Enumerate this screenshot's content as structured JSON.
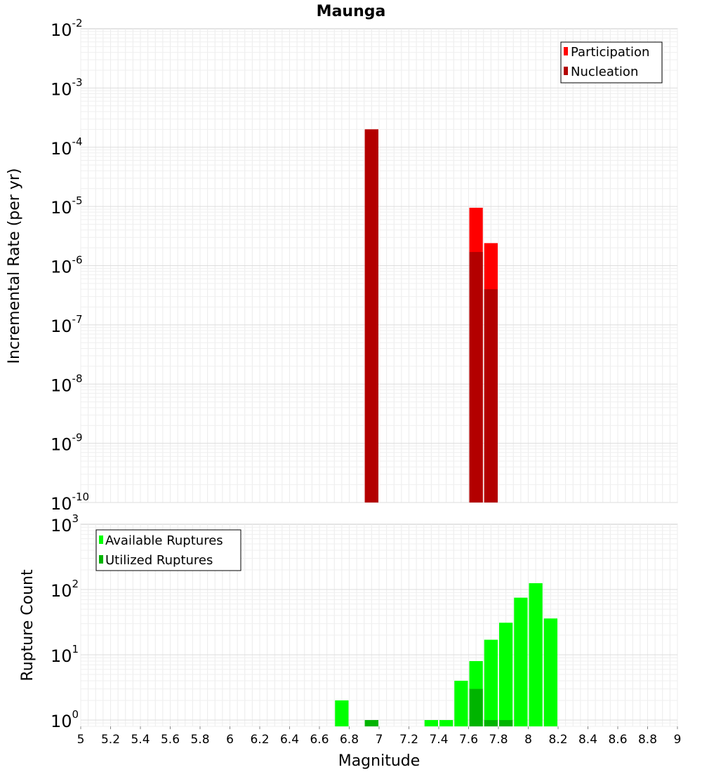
{
  "chart_data": [
    {
      "type": "bar",
      "title": "Maunga",
      "ylabel": "Incremental Rate (per yr)",
      "xlabel": "",
      "yscale": "log",
      "ylim": [
        1e-10,
        0.01
      ],
      "xlim": [
        5,
        9
      ],
      "y_ticks": [
        {
          "base": "10",
          "exp": "-10",
          "value": 1e-10
        },
        {
          "base": "10",
          "exp": "-9",
          "value": 1e-09
        },
        {
          "base": "10",
          "exp": "-8",
          "value": 1e-08
        },
        {
          "base": "10",
          "exp": "-7",
          "value": 1e-07
        },
        {
          "base": "10",
          "exp": "-6",
          "value": 1e-06
        },
        {
          "base": "10",
          "exp": "-5",
          "value": 1e-05
        },
        {
          "base": "10",
          "exp": "-4",
          "value": 0.0001
        },
        {
          "base": "10",
          "exp": "-3",
          "value": 0.001
        },
        {
          "base": "10",
          "exp": "-2",
          "value": 0.01
        }
      ],
      "grid": true,
      "legend_position": "top-right",
      "series": [
        {
          "name": "Participation",
          "color": "#ff0000",
          "points": [
            {
              "x": 6.95,
              "y": 0.0002
            },
            {
              "x": 7.65,
              "y": 9.5e-06
            },
            {
              "x": 7.75,
              "y": 2.4e-06
            }
          ]
        },
        {
          "name": "Nucleation",
          "color": "#b30000",
          "points": [
            {
              "x": 6.95,
              "y": 0.0002
            },
            {
              "x": 7.65,
              "y": 1.7e-06
            },
            {
              "x": 7.75,
              "y": 4e-07
            }
          ]
        }
      ]
    },
    {
      "type": "bar",
      "title": "",
      "ylabel": "Rupture Count",
      "xlabel": "Magnitude",
      "yscale": "log",
      "ylim": [
        0.8,
        1000
      ],
      "xlim": [
        5,
        9
      ],
      "y_ticks": [
        {
          "base": "10",
          "exp": "0",
          "value": 1
        },
        {
          "base": "10",
          "exp": "1",
          "value": 10
        },
        {
          "base": "10",
          "exp": "2",
          "value": 100
        },
        {
          "base": "10",
          "exp": "3",
          "value": 1000
        }
      ],
      "x_ticks": [
        "5",
        "5.2",
        "5.4",
        "5.6",
        "5.8",
        "6",
        "6.2",
        "6.4",
        "6.6",
        "6.8",
        "7",
        "7.2",
        "7.4",
        "7.6",
        "7.8",
        "8",
        "8.2",
        "8.4",
        "8.6",
        "8.8",
        "9"
      ],
      "grid": true,
      "legend_position": "top-left",
      "series": [
        {
          "name": "Available Ruptures",
          "color": "#00ff00",
          "points": [
            {
              "x": 6.75,
              "y": 2
            },
            {
              "x": 6.95,
              "y": 1
            },
            {
              "x": 7.35,
              "y": 1
            },
            {
              "x": 7.45,
              "y": 1
            },
            {
              "x": 7.55,
              "y": 4
            },
            {
              "x": 7.65,
              "y": 8
            },
            {
              "x": 7.75,
              "y": 17
            },
            {
              "x": 7.85,
              "y": 31
            },
            {
              "x": 7.95,
              "y": 75
            },
            {
              "x": 8.05,
              "y": 125
            },
            {
              "x": 8.15,
              "y": 36
            }
          ]
        },
        {
          "name": "Utilized Ruptures",
          "color": "#00b400",
          "points": [
            {
              "x": 6.95,
              "y": 1
            },
            {
              "x": 7.65,
              "y": 3
            },
            {
              "x": 7.75,
              "y": 1
            },
            {
              "x": 7.85,
              "y": 1
            }
          ]
        }
      ]
    }
  ]
}
